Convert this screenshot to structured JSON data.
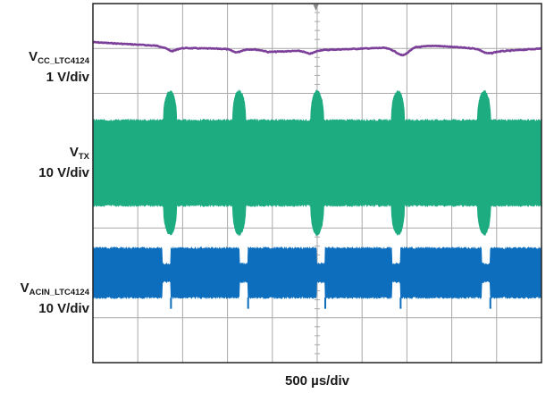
{
  "chart_data": {
    "type": "line",
    "grid": true,
    "divisions": {
      "x": 10,
      "y": 8
    },
    "x_scale": "500 µs/div",
    "x_unit": "µs",
    "xlim": [
      0,
      5000
    ],
    "trigger_marker": "top",
    "colors": {
      "vcc": "#7b3f99",
      "vtx": "#1dab80",
      "vacin": "#0d6ebe",
      "grid": "#a9a9a9",
      "frame": "#222222"
    },
    "series": [
      {
        "id": "vcc",
        "label_main": "V",
        "label_sub": "CC_LTC4124",
        "scale": "1 V/div",
        "style": "line",
        "center_div": 1,
        "points": [
          [
            0,
            -0.5
          ],
          [
            700,
            -0.22
          ],
          [
            780,
            -0.13
          ],
          [
            880,
            -0.05
          ],
          [
            1800,
            0.08
          ],
          [
            1880,
            0.15
          ],
          [
            1950,
            0.28
          ],
          [
            3250,
            -0.05
          ],
          [
            3330,
            0.1
          ],
          [
            3380,
            0.25
          ],
          [
            3450,
            0.3
          ],
          [
            3500,
            0.2
          ],
          [
            3600,
            -0.1
          ],
          [
            3800,
            -0.22
          ],
          [
            4350,
            0.05
          ],
          [
            4400,
            0.15
          ],
          [
            4450,
            0.28
          ],
          [
            5000,
            0.0
          ]
        ],
        "dips_us": [
          880,
          1600,
          2420,
          3460,
          4380
        ]
      },
      {
        "id": "vtx",
        "label_main": "V",
        "label_sub": "TX",
        "scale": "10 V/div",
        "style": "envelope",
        "center_div": 3.55,
        "band_half_div": 0.95,
        "burst_half_div": 1.6,
        "burst_width_us": 150,
        "bursts_us": [
          860,
          1630,
          2500,
          3400,
          4360
        ]
      },
      {
        "id": "vacin",
        "label_main": "V",
        "label_sub": "ACIN_LTC4124",
        "scale": "10 V/div",
        "style": "envelope",
        "center_div": 6.0,
        "band_half_div": 0.55,
        "notch_half_div": 0.2,
        "notch_width_us": 100,
        "spike_div": 0.25,
        "notches_us": [
          820,
          1680,
          2540,
          3380,
          4380
        ]
      }
    ]
  }
}
